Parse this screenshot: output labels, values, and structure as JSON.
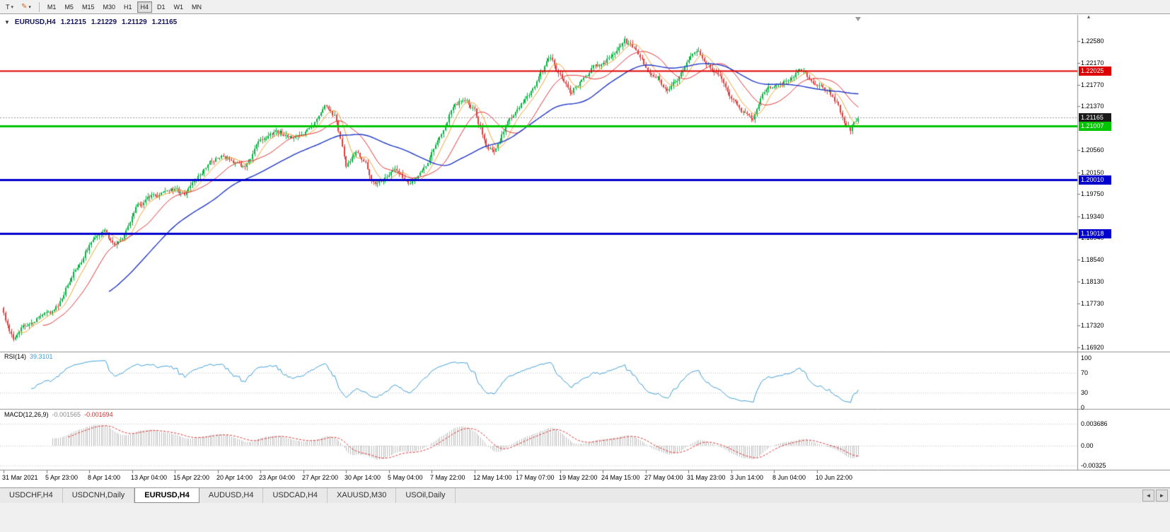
{
  "toolbar": {
    "tool_button": "T",
    "timeframes": [
      "M1",
      "M5",
      "M15",
      "M30",
      "H1",
      "H4",
      "D1",
      "W1",
      "MN"
    ],
    "active_timeframe": "H4"
  },
  "icons": {
    "caret_down": "▾",
    "pencil": "✎",
    "dropdown": "▼",
    "scroll_up": "▴",
    "tab_scroll_left": "◄",
    "tab_scroll_right": "►"
  },
  "chart": {
    "header": {
      "symbol": "EURUSD,H4",
      "open": "1.21215",
      "high": "1.21229",
      "low": "1.21129",
      "close": "1.21165"
    },
    "price_axis": {
      "min": 1.1684,
      "max": 1.2302,
      "labels": [
        "1.22580",
        "1.22170",
        "1.21770",
        "1.21370",
        "1.20560",
        "1.20150",
        "1.19750",
        "1.19340",
        "1.18940",
        "1.18540",
        "1.18130",
        "1.17730",
        "1.17320",
        "1.16920"
      ]
    },
    "levels": [
      {
        "label": "1.22025",
        "price": 1.22025,
        "color": "#dd0000",
        "width": 2,
        "type": "resistance-line"
      },
      {
        "label": "1.21165",
        "price": 1.21165,
        "color": "#1a1a1a",
        "width": 1,
        "type": "current-price"
      },
      {
        "label": "1.21007",
        "price": 1.21007,
        "color": "#00c400",
        "width": 3,
        "type": "support-line"
      },
      {
        "label": "1.20010",
        "price": 1.2001,
        "color": "#0000cc",
        "width": 3,
        "type": "support-line"
      },
      {
        "label": "1.19018",
        "price": 1.19018,
        "color": "#0000cc",
        "width": 3,
        "type": "support-line"
      }
    ],
    "time_labels": [
      "31 Mar 2021",
      "5 Apr 23:00",
      "8 Apr 14:00",
      "13 Apr 04:00",
      "15 Apr 22:00",
      "20 Apr 14:00",
      "23 Apr 04:00",
      "27 Apr 22:00",
      "30 Apr 14:00",
      "5 May 04:00",
      "7 May 22:00",
      "12 May 14:00",
      "17 May 07:00",
      "19 May 22:00",
      "24 May 15:00",
      "27 May 04:00",
      "31 May 23:00",
      "3 Jun 14:00",
      "8 Jun 04:00",
      "10 Jun 22:00"
    ]
  },
  "indicators": {
    "rsi": {
      "name": "RSI(14)",
      "value_text": "39.3101",
      "value": 39.3101,
      "period": 14,
      "axis_labels": [
        "100",
        "70",
        "30",
        "0"
      ],
      "levels": [
        70,
        30
      ],
      "range": [
        0,
        100
      ]
    },
    "macd": {
      "name": "MACD(12,26,9)",
      "macd_text": "-0.001565",
      "signal_text": "-0.001694",
      "macd_value": -0.001565,
      "signal_value": -0.001694,
      "axis_labels": [
        "0.003686",
        "0.00",
        "-0.00325"
      ]
    }
  },
  "chart_data": {
    "type": "candlestick",
    "symbol": "EURUSD",
    "timeframe": "H4",
    "candle_count": 440,
    "price_path_anchors": [
      [
        0,
        1.1752
      ],
      [
        5,
        1.1708
      ],
      [
        12,
        1.1736
      ],
      [
        20,
        1.1748
      ],
      [
        28,
        1.1766
      ],
      [
        34,
        1.1818
      ],
      [
        40,
        1.1852
      ],
      [
        46,
        1.1895
      ],
      [
        52,
        1.1905
      ],
      [
        57,
        1.1878
      ],
      [
        63,
        1.1908
      ],
      [
        68,
        1.195
      ],
      [
        74,
        1.1965
      ],
      [
        80,
        1.1975
      ],
      [
        86,
        1.1988
      ],
      [
        93,
        1.1972
      ],
      [
        100,
        1.2005
      ],
      [
        106,
        1.203
      ],
      [
        112,
        1.2048
      ],
      [
        118,
        1.2038
      ],
      [
        124,
        1.202
      ],
      [
        130,
        1.2062
      ],
      [
        136,
        1.2085
      ],
      [
        142,
        1.2088
      ],
      [
        148,
        1.2082
      ],
      [
        154,
        1.209
      ],
      [
        160,
        1.211
      ],
      [
        165,
        1.2142
      ],
      [
        170,
        1.212
      ],
      [
        176,
        1.2028
      ],
      [
        181,
        1.2055
      ],
      [
        186,
        1.203
      ],
      [
        191,
        1.1992
      ],
      [
        196,
        1.2005
      ],
      [
        202,
        1.2018
      ],
      [
        208,
        1.1992
      ],
      [
        212,
        1.2002
      ],
      [
        216,
        1.2018
      ],
      [
        220,
        1.2052
      ],
      [
        224,
        1.2085
      ],
      [
        228,
        1.2115
      ],
      [
        232,
        1.2142
      ],
      [
        237,
        1.2152
      ],
      [
        242,
        1.2128
      ],
      [
        248,
        1.2068
      ],
      [
        252,
        1.2055
      ],
      [
        258,
        1.21
      ],
      [
        264,
        1.213
      ],
      [
        270,
        1.2155
      ],
      [
        276,
        1.2195
      ],
      [
        281,
        1.2228
      ],
      [
        286,
        1.2195
      ],
      [
        291,
        1.2162
      ],
      [
        296,
        1.218
      ],
      [
        302,
        1.2205
      ],
      [
        308,
        1.2218
      ],
      [
        314,
        1.2238
      ],
      [
        319,
        1.2258
      ],
      [
        325,
        1.2242
      ],
      [
        331,
        1.2205
      ],
      [
        337,
        1.219
      ],
      [
        341,
        1.2162
      ],
      [
        346,
        1.2185
      ],
      [
        352,
        1.2222
      ],
      [
        357,
        1.224
      ],
      [
        363,
        1.221
      ],
      [
        369,
        1.2188
      ],
      [
        375,
        1.215
      ],
      [
        381,
        1.212
      ],
      [
        385,
        1.2106
      ],
      [
        390,
        1.2165
      ],
      [
        396,
        1.2175
      ],
      [
        402,
        1.2182
      ],
      [
        407,
        1.22
      ],
      [
        411,
        1.2205
      ],
      [
        415,
        1.2182
      ],
      [
        419,
        1.2172
      ],
      [
        424,
        1.2166
      ],
      [
        428,
        1.2145
      ],
      [
        432,
        1.2108
      ],
      [
        435,
        1.2094
      ],
      [
        437,
        1.2108
      ],
      [
        439,
        1.21165
      ]
    ],
    "moving_averages": [
      {
        "period": 8,
        "color": "#f0a030"
      },
      {
        "period": 21,
        "color": "#e03030"
      },
      {
        "period": 55,
        "color": "#2038c8"
      }
    ],
    "colors": {
      "bull": "#00b43c",
      "bear": "#e43c3c",
      "rsi_line": "#3d9bd5",
      "macd_histogram": "#bdbdbd",
      "macd_signal": "#e03030"
    }
  },
  "tabs": {
    "items": [
      "USDCHF,H4",
      "USDCNH,Daily",
      "EURUSD,H4",
      "AUDUSD,H4",
      "USDCAD,H4",
      "XAUUSD,M30",
      "USOil,Daily"
    ],
    "active": "EURUSD,H4"
  }
}
